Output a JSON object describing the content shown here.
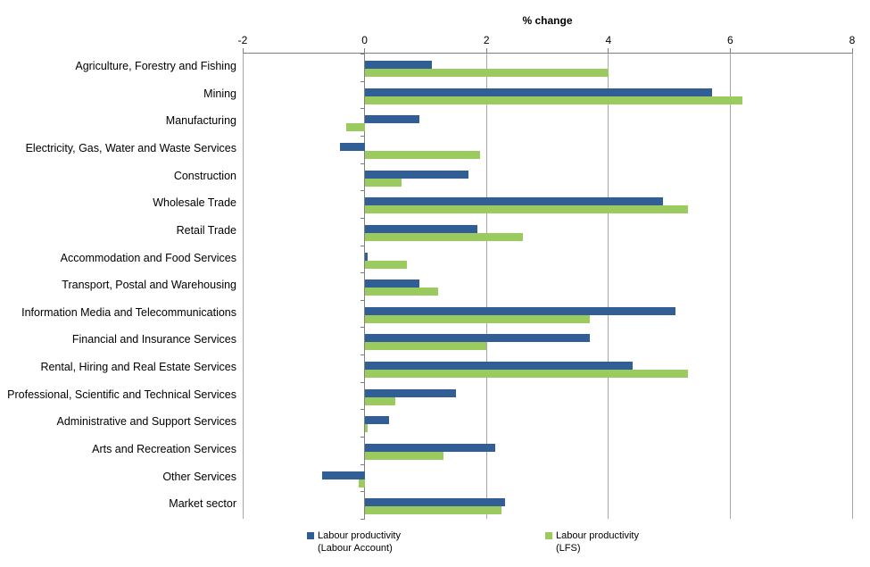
{
  "chart_data": {
    "type": "bar",
    "orientation": "horizontal",
    "title": "% change",
    "xlabel": "% change",
    "ylabel": "",
    "grid": true,
    "legend_position": "bottom",
    "axis": {
      "min": -2,
      "max": 8,
      "ticks": [
        -2,
        0,
        2,
        4,
        6,
        8
      ]
    },
    "categories": [
      "Agriculture, Forestry and Fishing",
      "Mining",
      "Manufacturing",
      "Electricity, Gas, Water and Waste Services",
      "Construction",
      "Wholesale Trade",
      "Retail Trade",
      "Accommodation and Food Services",
      "Transport, Postal and Warehousing",
      "Information Media and Telecommunications",
      "Financial and Insurance Services",
      "Rental, Hiring and Real Estate Services",
      "Professional, Scientific and Technical Services",
      "Administrative and Support Services",
      "Arts and Recreation Services",
      "Other Services",
      "Market sector"
    ],
    "series": [
      {
        "name": "Labour productivity (Labour Account)",
        "color": "#315E94",
        "values": [
          1.1,
          5.7,
          0.9,
          -0.4,
          1.7,
          4.9,
          1.85,
          0.05,
          0.9,
          5.1,
          3.7,
          4.4,
          1.5,
          0.4,
          2.15,
          -0.7,
          2.3
        ]
      },
      {
        "name": "Labour productivity (LFS)",
        "color": "#9BCA5F",
        "values": [
          4.0,
          6.2,
          -0.3,
          1.9,
          0.6,
          5.3,
          2.6,
          0.7,
          1.2,
          3.7,
          2.0,
          5.3,
          0.5,
          0.05,
          1.3,
          -0.1,
          2.25
        ]
      }
    ],
    "legend": [
      {
        "line1": "Labour productivity",
        "line2": "(Labour Account)",
        "color": "#315E94"
      },
      {
        "line1": "Labour productivity",
        "line2": "(LFS)",
        "color": "#9BCA5F"
      }
    ]
  },
  "colors": {
    "gridline": "#a6a6a6",
    "axis_line": "#808080",
    "text": "#000000",
    "background": "#ffffff"
  }
}
